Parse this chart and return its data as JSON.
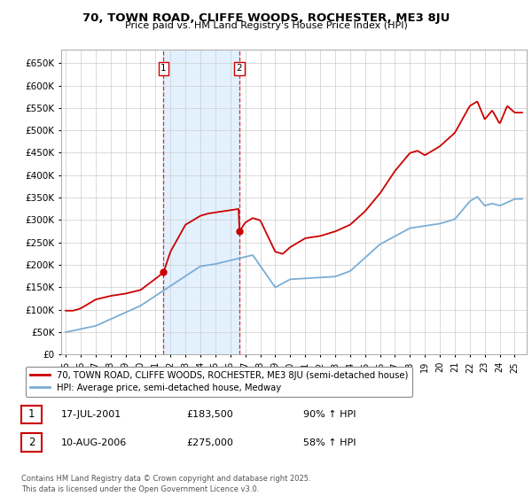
{
  "title": "70, TOWN ROAD, CLIFFE WOODS, ROCHESTER, ME3 8JU",
  "subtitle": "Price paid vs. HM Land Registry's House Price Index (HPI)",
  "background_color": "#ffffff",
  "plot_bg_color": "#ffffff",
  "grid_color": "#cccccc",
  "hpi_line_color": "#7aaed6",
  "price_line_color": "#cc0000",
  "span_color": "#ddeeff",
  "ylim": [
    0,
    680000
  ],
  "yticks": [
    0,
    50000,
    100000,
    150000,
    200000,
    250000,
    300000,
    350000,
    400000,
    450000,
    500000,
    550000,
    600000,
    650000
  ],
  "legend_entries": [
    "70, TOWN ROAD, CLIFFE WOODS, ROCHESTER, ME3 8JU (semi-detached house)",
    "HPI: Average price, semi-detached house, Medway"
  ],
  "transaction1": {
    "label": "1",
    "date": "17-JUL-2001",
    "price": "£183,500",
    "hpi": "90% ↑ HPI"
  },
  "transaction2": {
    "label": "2",
    "date": "10-AUG-2006",
    "price": "£275,000",
    "hpi": "58% ↑ HPI"
  },
  "footer": "Contains HM Land Registry data © Crown copyright and database right 2025.\nThis data is licensed under the Open Government Licence v3.0.",
  "sale1_x": 2001.54,
  "sale1_price": 183500,
  "sale2_x": 2006.61,
  "sale2_price": 275000
}
